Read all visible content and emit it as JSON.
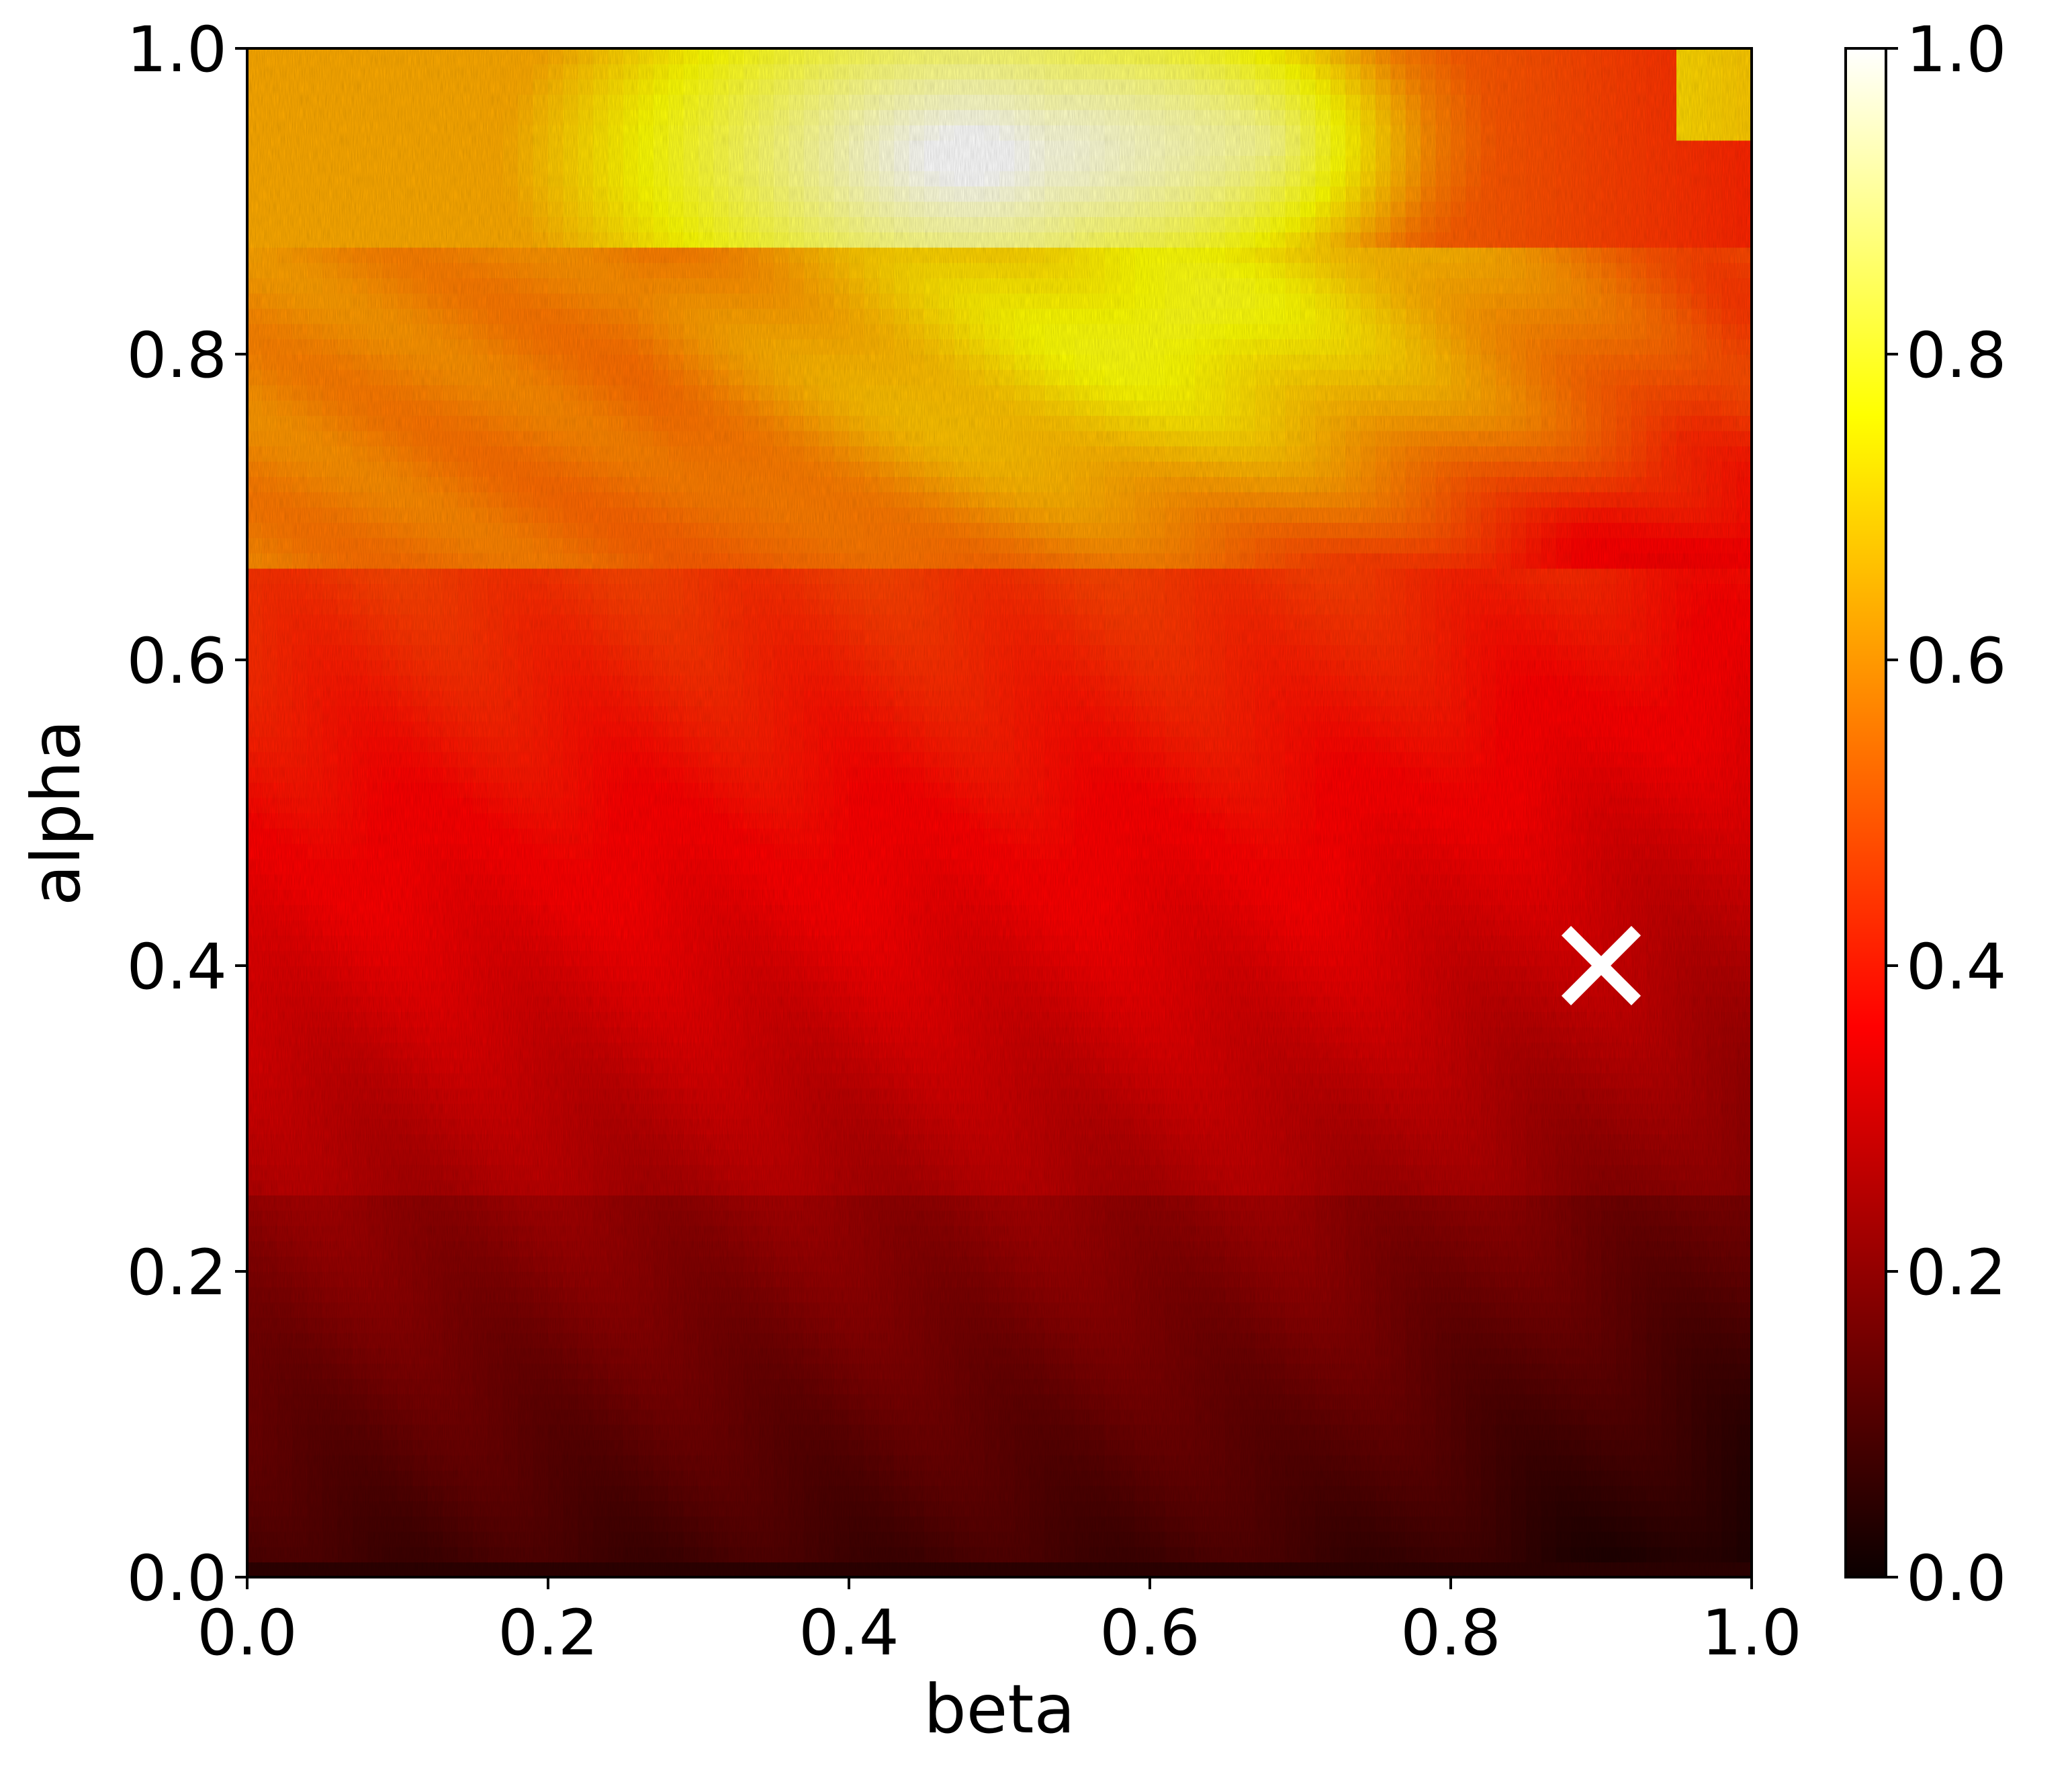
{
  "chart_data": {
    "type": "heatmap",
    "xlabel": "beta",
    "ylabel": "alpha",
    "xlim": [
      0.0,
      1.0
    ],
    "ylim": [
      0.0,
      1.0
    ],
    "x_ticks": [
      "0.0",
      "0.2",
      "0.4",
      "0.6",
      "0.8",
      "1.0"
    ],
    "y_ticks": [
      "0.0",
      "0.2",
      "0.4",
      "0.6",
      "0.8",
      "1.0"
    ],
    "x_tick_values": [
      0.0,
      0.2,
      0.4,
      0.6,
      0.8,
      1.0
    ],
    "y_tick_values": [
      0.0,
      0.2,
      0.4,
      0.6,
      0.8,
      1.0
    ],
    "colormap": "hot",
    "colorbar": {
      "range": [
        0.0,
        1.0
      ],
      "ticks": [
        "0.0",
        "0.2",
        "0.4",
        "0.6",
        "0.8",
        "1.0"
      ],
      "tick_values": [
        0.0,
        0.2,
        0.4,
        0.6,
        0.8,
        1.0
      ]
    },
    "marker": {
      "symbol": "x",
      "color": "#ffffff",
      "beta": 0.9,
      "alpha": 0.4
    },
    "grid": false,
    "regions_note_values": {
      "band_boundaries_alpha": [
        0.66,
        0.87
      ],
      "bright_peak": {
        "beta": 0.48,
        "alpha": 0.9,
        "value": 1.0
      }
    }
  }
}
